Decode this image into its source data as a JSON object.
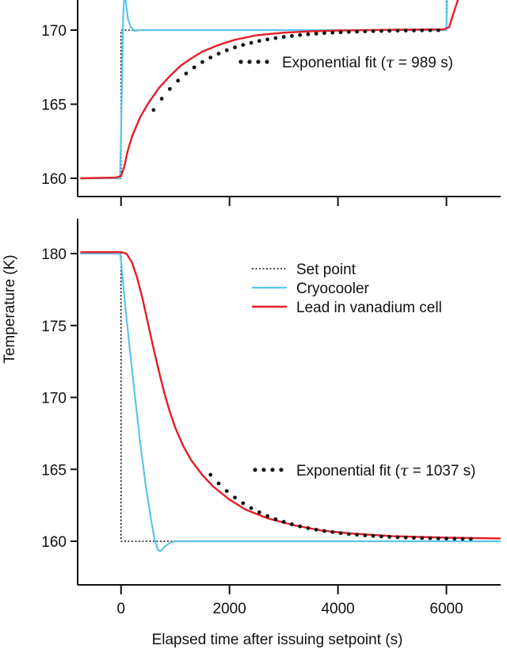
{
  "colors": {
    "set_point": "#111111",
    "cryocooler": "#5bc4ef",
    "lead_cell": "#e41e26",
    "fit_dots": "#111111"
  },
  "ylabel": "Temperature (K)",
  "xlabel": "Elapsed time after issuing setpoint (s)",
  "chart_data": [
    {
      "type": "line",
      "panel": "top",
      "title": "",
      "xlim": [
        -800,
        7000
      ],
      "ylim": [
        159.2,
        171.9
      ],
      "xticks": [
        0,
        2000,
        4000,
        6000
      ],
      "yticks": [
        160,
        165,
        170
      ],
      "ytick_labels": [
        "160",
        "165",
        "170"
      ],
      "grid": false,
      "series": [
        {
          "name": "",
          "style": "dotted",
          "points": [
            [
              -750,
              160
            ],
            [
              0,
              160
            ],
            [
              0,
              170
            ],
            [
              6000,
              170
            ],
            [
              6000,
              172.5
            ]
          ]
        },
        {
          "name": "",
          "style": "solid-blue",
          "points": [
            [
              -750,
              160
            ],
            [
              -20,
              160
            ],
            [
              0,
              163
            ],
            [
              25,
              168
            ],
            [
              40,
              171
            ],
            [
              60,
              172.3
            ],
            [
              90,
              171.9
            ],
            [
              130,
              170.7
            ],
            [
              180,
              170.2
            ],
            [
              250,
              169.95
            ],
            [
              350,
              170
            ],
            [
              6000,
              170
            ],
            [
              6015,
              172.5
            ]
          ]
        },
        {
          "name": "",
          "style": "solid-red",
          "points": [
            [
              -750,
              160
            ],
            [
              -100,
              160.05
            ],
            [
              0,
              160.15
            ],
            [
              60,
              160.8
            ],
            [
              120,
              161.8
            ],
            [
              200,
              162.8
            ],
            [
              350,
              164.1
            ],
            [
              500,
              165.05
            ],
            [
              700,
              166.1
            ],
            [
              900,
              166.9
            ],
            [
              1100,
              167.6
            ],
            [
              1300,
              168.1
            ],
            [
              1500,
              168.55
            ],
            [
              1800,
              169.0
            ],
            [
              2100,
              169.35
            ],
            [
              2500,
              169.65
            ],
            [
              3000,
              169.83
            ],
            [
              3500,
              169.92
            ],
            [
              4000,
              169.97
            ],
            [
              5000,
              170.02
            ],
            [
              5950,
              170.05
            ],
            [
              6050,
              170.2
            ],
            [
              6100,
              170.8
            ],
            [
              6200,
              171.9
            ],
            [
              6250,
              172.5
            ]
          ]
        },
        {
          "name": "Exponential fit (τ = 989 s)",
          "style": "dots",
          "fit": {
            "t0": 0,
            "y0": 160.1,
            "y_inf": 170.02,
            "tau": 989,
            "t_start": 600,
            "t_end": 5900,
            "step": 150
          }
        }
      ],
      "legend": [
        {
          "label": "Exponential fit (τ = 989 s)",
          "style": "dots"
        }
      ],
      "legend_position": "top-right"
    },
    {
      "type": "line",
      "panel": "bottom",
      "title": "",
      "xlim": [
        -800,
        7000
      ],
      "ylim": [
        157.8,
        182.4
      ],
      "xticks": [
        0,
        2000,
        4000,
        6000
      ],
      "xtick_labels": [
        "0",
        "2000",
        "4000",
        "6000"
      ],
      "yticks": [
        160,
        165,
        170,
        175,
        180
      ],
      "ytick_labels": [
        "160",
        "165",
        "170",
        "175",
        "180"
      ],
      "grid": false,
      "series": [
        {
          "name": "Set point",
          "style": "dotted",
          "points": [
            [
              -750,
              180
            ],
            [
              0,
              180
            ],
            [
              0,
              160
            ],
            [
              7000,
              160
            ]
          ]
        },
        {
          "name": "Cryocooler",
          "style": "solid-blue",
          "points": [
            [
              -750,
              180
            ],
            [
              -20,
              180
            ],
            [
              0,
              179.5
            ],
            [
              60,
              177
            ],
            [
              150,
              173.8
            ],
            [
              250,
              170.3
            ],
            [
              350,
              167
            ],
            [
              450,
              164
            ],
            [
              550,
              161.6
            ],
            [
              620,
              160.1
            ],
            [
              680,
              159.4
            ],
            [
              730,
              159.3
            ],
            [
              800,
              159.6
            ],
            [
              900,
              159.9
            ],
            [
              1000,
              160
            ],
            [
              7000,
              160
            ]
          ]
        },
        {
          "name": "Lead in vanadium cell",
          "style": "solid-red",
          "points": [
            [
              -750,
              180.1
            ],
            [
              0,
              180.1
            ],
            [
              100,
              180
            ],
            [
              200,
              179.4
            ],
            [
              300,
              178.3
            ],
            [
              400,
              176.8
            ],
            [
              500,
              175.1
            ],
            [
              600,
              173.4
            ],
            [
              700,
              171.8
            ],
            [
              800,
              170.3
            ],
            [
              900,
              169.0
            ],
            [
              1000,
              167.9
            ],
            [
              1150,
              166.6
            ],
            [
              1300,
              165.6
            ],
            [
              1500,
              164.6
            ],
            [
              1700,
              163.8
            ],
            [
              2000,
              162.9
            ],
            [
              2300,
              162.2
            ],
            [
              2700,
              161.6
            ],
            [
              3200,
              161.1
            ],
            [
              3700,
              160.75
            ],
            [
              4200,
              160.55
            ],
            [
              5000,
              160.35
            ],
            [
              6000,
              160.25
            ],
            [
              7000,
              160.2
            ]
          ]
        },
        {
          "name": "Exponential fit (τ = 1037 s)",
          "style": "dots",
          "fit": {
            "t0": 680,
            "y0": 171.6,
            "y_inf": 160.12,
            "tau": 1037,
            "t_start": 1650,
            "t_end": 6500,
            "step": 150
          }
        }
      ],
      "legend": [
        {
          "label": "Set point",
          "style": "dotted"
        },
        {
          "label": "Cryocooler",
          "style": "solid-blue"
        },
        {
          "label": "Lead in vanadium cell",
          "style": "solid-red"
        },
        {
          "label": "Exponential fit (τ = 1037 s)",
          "style": "dots"
        }
      ],
      "legend_position": "right"
    }
  ]
}
